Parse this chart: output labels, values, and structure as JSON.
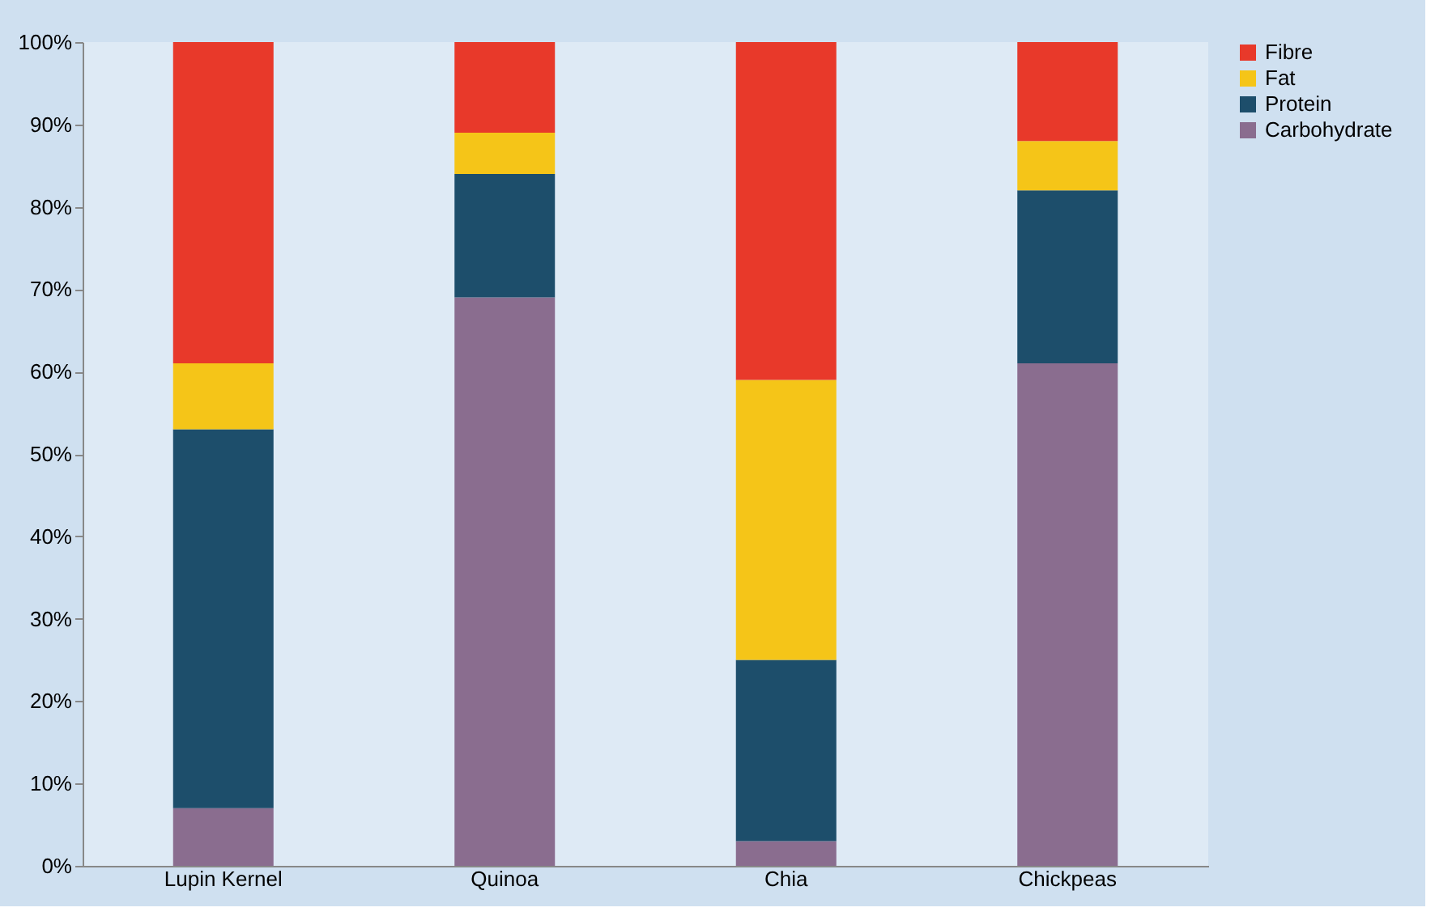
{
  "chart_data": {
    "type": "bar",
    "stacked": true,
    "categories": [
      "Lupin Kernel",
      "Quinoa",
      "Chia",
      "Chickpeas"
    ],
    "series": [
      {
        "name": "Carbohydrate",
        "color": "#8a6d8f",
        "values": [
          7,
          69,
          3,
          61
        ]
      },
      {
        "name": "Protein",
        "color": "#1d4e6b",
        "values": [
          46,
          15,
          22,
          21
        ]
      },
      {
        "name": "Fat",
        "color": "#f5c518",
        "values": [
          8,
          5,
          34,
          6
        ]
      },
      {
        "name": "Fibre",
        "color": "#e8392a",
        "values": [
          39,
          11,
          41,
          12
        ]
      }
    ],
    "ylim": [
      0,
      100
    ],
    "yticks": [
      {
        "value": 0,
        "label": "0%"
      },
      {
        "value": 10,
        "label": "10%"
      },
      {
        "value": 20,
        "label": "20%"
      },
      {
        "value": 30,
        "label": "30%"
      },
      {
        "value": 40,
        "label": "40%"
      },
      {
        "value": 50,
        "label": "50%"
      },
      {
        "value": 60,
        "label": "60%"
      },
      {
        "value": 70,
        "label": "70%"
      },
      {
        "value": 80,
        "label": "80%"
      },
      {
        "value": 90,
        "label": "90%"
      },
      {
        "value": 100,
        "label": "100%"
      }
    ],
    "grid": false,
    "legend": "right"
  }
}
